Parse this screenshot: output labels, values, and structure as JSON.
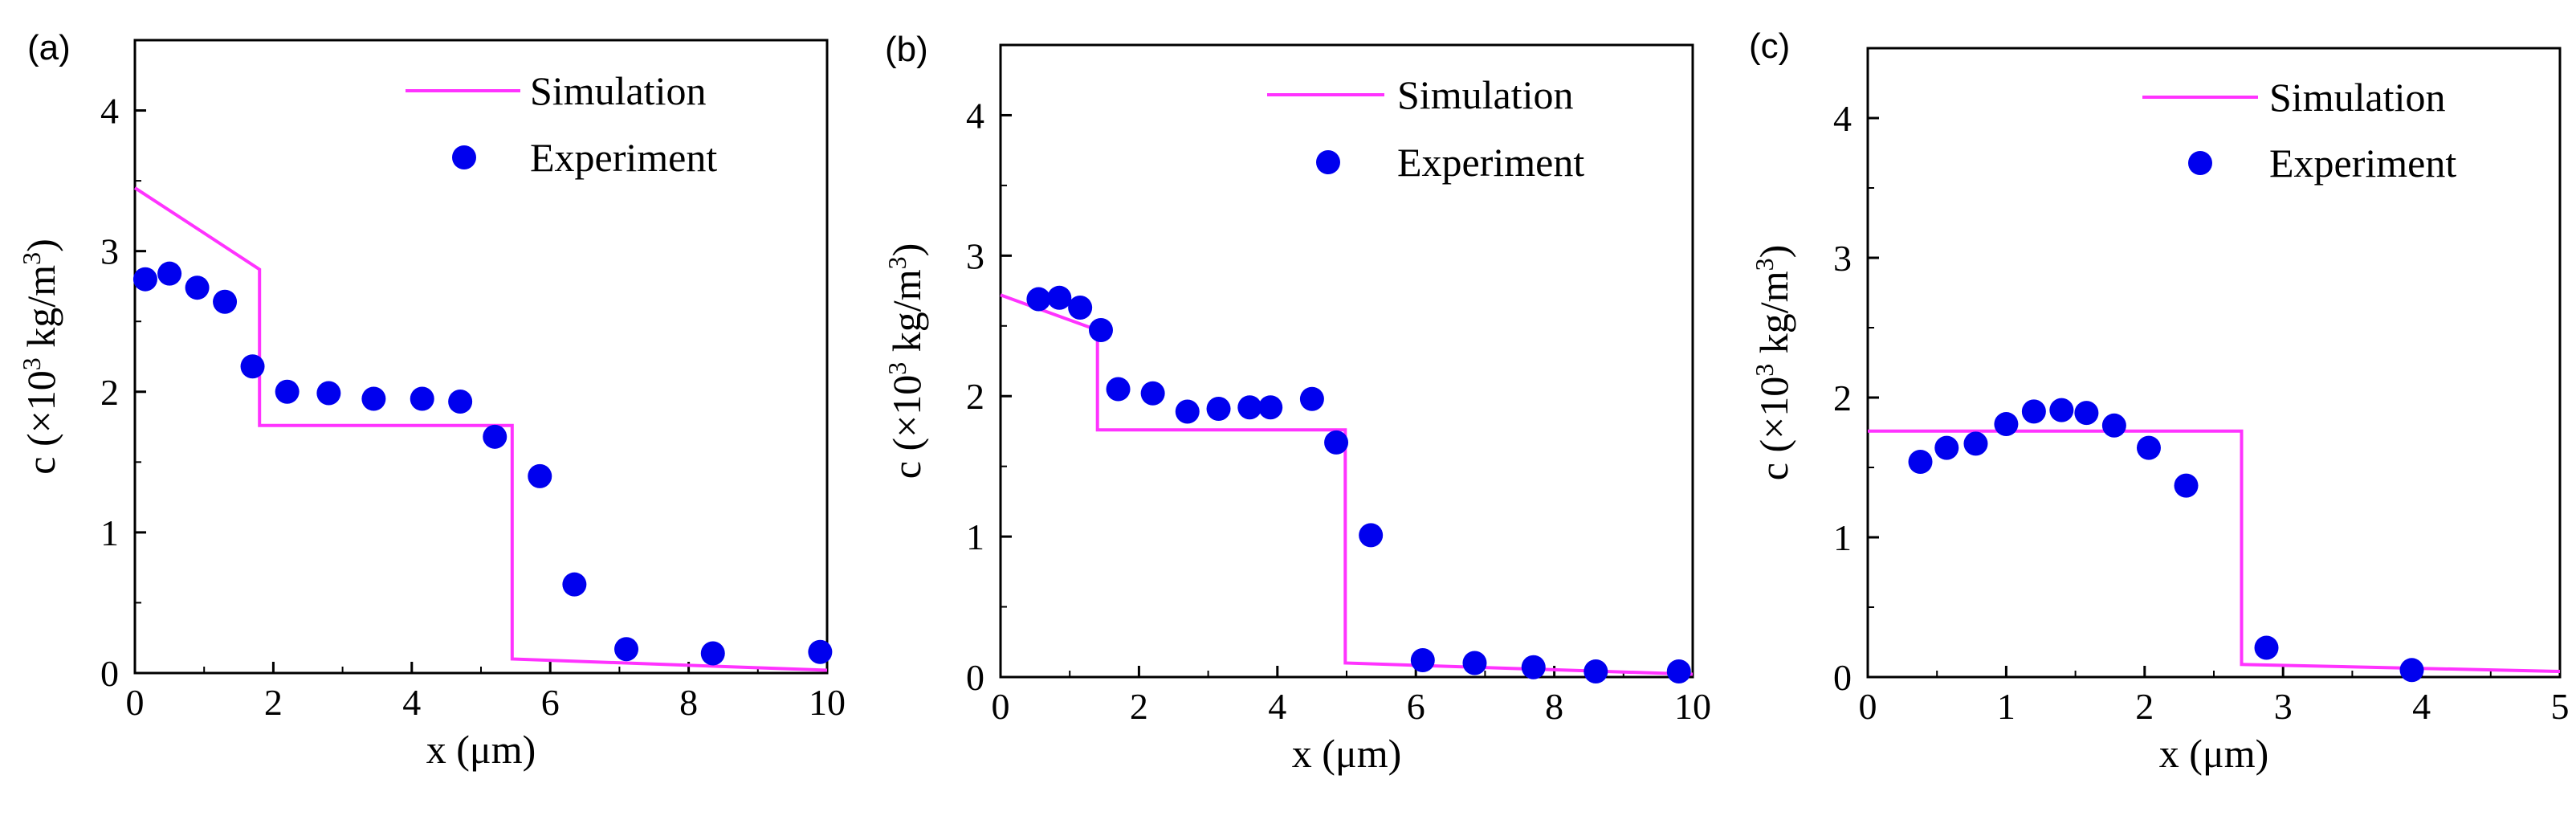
{
  "colors": {
    "simulation": "#ff33ff",
    "experiment": "#0000ee",
    "axis": "#000000"
  },
  "chart_data": [
    {
      "type": "scatter",
      "panel": "(a)",
      "xlabel": "x (μm)",
      "ylabel": {
        "prefix": "c (×10",
        "sup1": "3",
        "mid": " kg/m",
        "sup2": "3",
        "suffix": ")"
      },
      "xlim": [
        0,
        10
      ],
      "ylim": [
        0,
        4.5
      ],
      "xticks": [
        0,
        2,
        4,
        6,
        8,
        10
      ],
      "yticks": [
        0,
        1,
        2,
        3,
        4
      ],
      "legend": {
        "position": "top-right",
        "entries": [
          "Simulation",
          "Experiment"
        ]
      },
      "series": [
        {
          "name": "Simulation",
          "kind": "line",
          "x": [
            0,
            1.8,
            1.8,
            5.45,
            5.45,
            10
          ],
          "y": [
            3.45,
            2.87,
            1.76,
            1.76,
            0.1,
            0.02
          ]
        },
        {
          "name": "Experiment",
          "kind": "scatter",
          "x": [
            0.15,
            0.5,
            0.9,
            1.3,
            1.7,
            2.2,
            2.8,
            3.45,
            4.15,
            4.7,
            5.2,
            5.85,
            6.35,
            7.1,
            8.35,
            9.9
          ],
          "y": [
            2.8,
            2.84,
            2.74,
            2.64,
            2.18,
            2.0,
            1.99,
            1.95,
            1.95,
            1.93,
            1.68,
            1.4,
            0.63,
            0.17,
            0.14,
            0.15
          ]
        }
      ]
    },
    {
      "type": "scatter",
      "panel": "(b)",
      "xlabel": "x (μm)",
      "ylabel": {
        "prefix": "c (×10",
        "sup1": "3",
        "mid": " kg/m",
        "sup2": "3",
        "suffix": ")"
      },
      "xlim": [
        0,
        10
      ],
      "ylim": [
        0,
        4.5
      ],
      "xticks": [
        0,
        2,
        4,
        6,
        8,
        10
      ],
      "yticks": [
        0,
        1,
        2,
        3,
        4
      ],
      "legend": {
        "position": "top-right",
        "entries": [
          "Simulation",
          "Experiment"
        ]
      },
      "series": [
        {
          "name": "Simulation",
          "kind": "line",
          "x": [
            0,
            1.4,
            1.4,
            4.98,
            4.98,
            10
          ],
          "y": [
            2.72,
            2.47,
            1.76,
            1.76,
            0.1,
            0.02
          ]
        },
        {
          "name": "Experiment",
          "kind": "scatter",
          "x": [
            0.55,
            0.85,
            1.15,
            1.45,
            1.7,
            2.2,
            2.7,
            3.15,
            3.6,
            3.9,
            4.5,
            4.85,
            5.35,
            6.1,
            6.85,
            7.7,
            8.6,
            9.8
          ],
          "y": [
            2.69,
            2.7,
            2.63,
            2.47,
            2.05,
            2.02,
            1.89,
            1.91,
            1.92,
            1.92,
            1.98,
            1.67,
            1.01,
            0.12,
            0.1,
            0.07,
            0.04,
            0.04
          ]
        }
      ]
    },
    {
      "type": "scatter",
      "panel": "(c)",
      "xlabel": "x (μm)",
      "ylabel": {
        "prefix": "c (×10",
        "sup1": "3",
        "mid": " kg/m",
        "sup2": "3",
        "suffix": ")"
      },
      "xlim": [
        0,
        5
      ],
      "ylim": [
        0,
        4.5
      ],
      "xticks": [
        0,
        1,
        2,
        3,
        4,
        5
      ],
      "yticks": [
        0,
        1,
        2,
        3,
        4
      ],
      "legend": {
        "position": "top-right",
        "entries": [
          "Simulation",
          "Experiment"
        ]
      },
      "series": [
        {
          "name": "Simulation",
          "kind": "line",
          "x": [
            0,
            2.7,
            2.7,
            5
          ],
          "y": [
            1.76,
            1.76,
            0.09,
            0.04
          ]
        },
        {
          "name": "Experiment",
          "kind": "scatter",
          "x": [
            0.38,
            0.57,
            0.78,
            1.0,
            1.2,
            1.4,
            1.58,
            1.78,
            2.03,
            2.3,
            2.88,
            3.93
          ],
          "y": [
            1.54,
            1.64,
            1.67,
            1.81,
            1.9,
            1.91,
            1.89,
            1.8,
            1.64,
            1.37,
            0.21,
            0.05
          ]
        }
      ]
    }
  ]
}
